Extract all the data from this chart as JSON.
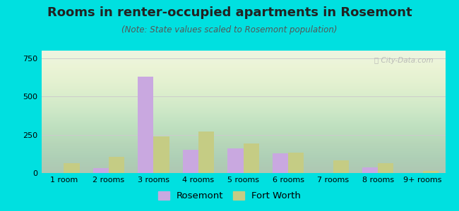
{
  "title": "Rooms in renter-occupied apartments in Rosemont",
  "subtitle": "(Note: State values scaled to Rosemont population)",
  "categories": [
    "1 room",
    "2 rooms",
    "3 rooms",
    "4 rooms",
    "5 rooms",
    "6 rooms",
    "7 rooms",
    "8 rooms",
    "9+ rooms"
  ],
  "rosemont": [
    0,
    30,
    630,
    150,
    160,
    130,
    0,
    35,
    0
  ],
  "fort_worth": [
    65,
    105,
    240,
    270,
    195,
    135,
    85,
    65,
    15
  ],
  "rosemont_color": "#c9a8e0",
  "fort_worth_color": "#c5cc84",
  "background_outer": "#00e0e0",
  "ylim": [
    0,
    800
  ],
  "yticks": [
    0,
    250,
    500,
    750
  ],
  "grid_color": "#cccccc",
  "title_fontsize": 13,
  "subtitle_fontsize": 8.5,
  "tick_fontsize": 8,
  "legend_fontsize": 9.5,
  "bar_width": 0.35
}
